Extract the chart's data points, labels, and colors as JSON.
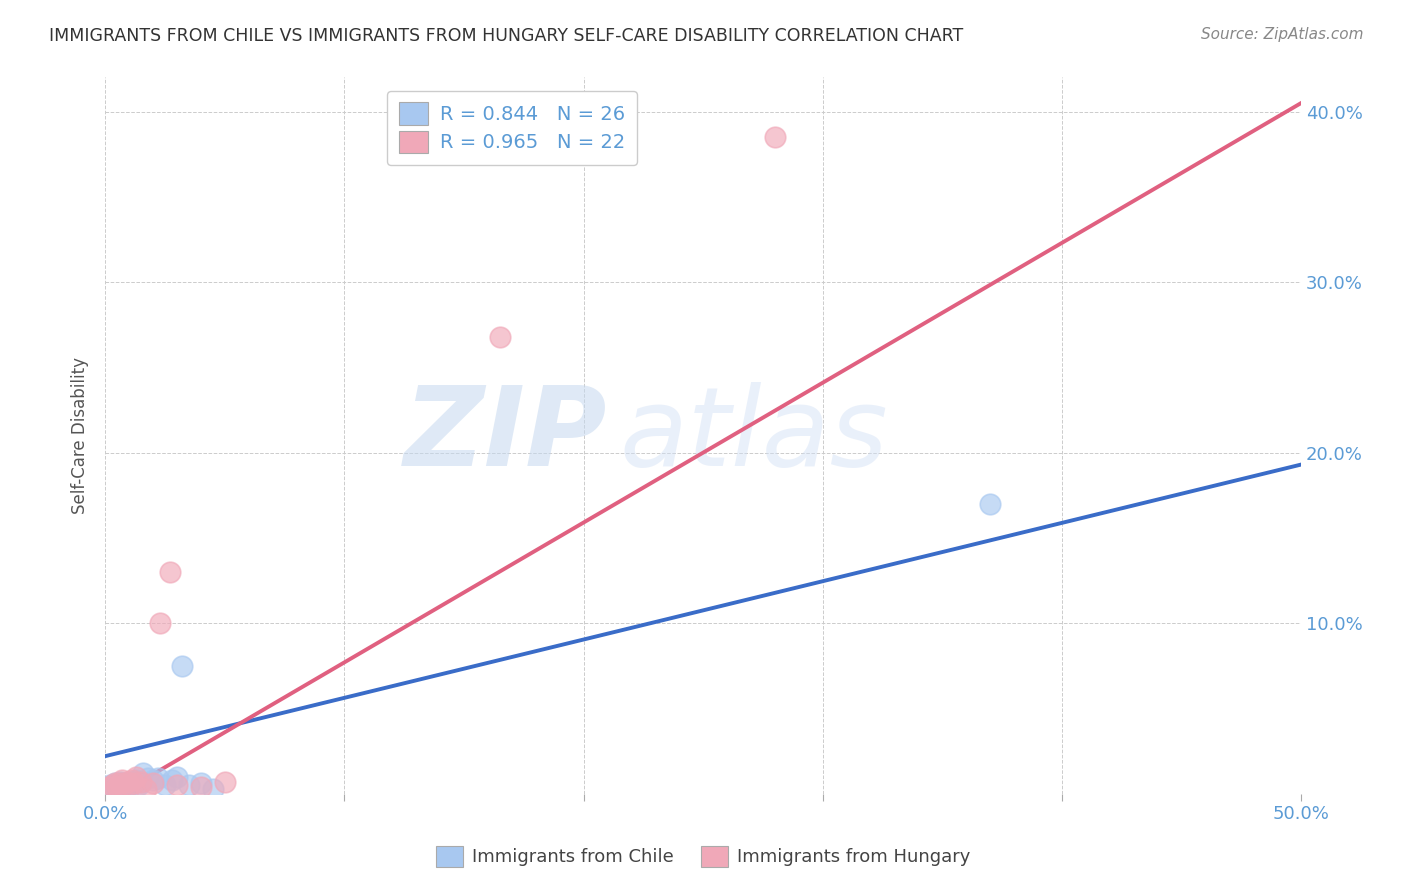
{
  "title": "IMMIGRANTS FROM CHILE VS IMMIGRANTS FROM HUNGARY SELF-CARE DISABILITY CORRELATION CHART",
  "source": "Source: ZipAtlas.com",
  "ylabel": "Self-Care Disability",
  "xlim": [
    0.0,
    0.5
  ],
  "ylim": [
    0.0,
    0.42
  ],
  "watermark_zip": "ZIP",
  "watermark_atlas": "atlas",
  "chile_color": "#a8c8f0",
  "hungary_color": "#f0a8b8",
  "chile_line_color": "#3a6cc8",
  "hungary_line_color": "#e06080",
  "chile_R": 0.844,
  "chile_N": 26,
  "hungary_R": 0.965,
  "hungary_N": 22,
  "chile_line_x0": 0.0,
  "chile_line_y0": 0.022,
  "chile_line_x1": 0.5,
  "chile_line_y1": 0.193,
  "hungary_line_x0": 0.0,
  "hungary_line_y0": -0.005,
  "hungary_line_x1": 0.5,
  "hungary_line_y1": 0.405,
  "chile_scatter_x": [
    0.002,
    0.003,
    0.004,
    0.005,
    0.006,
    0.007,
    0.008,
    0.009,
    0.01,
    0.011,
    0.012,
    0.013,
    0.014,
    0.015,
    0.016,
    0.018,
    0.02,
    0.022,
    0.025,
    0.028,
    0.03,
    0.032,
    0.035,
    0.04,
    0.045,
    0.37
  ],
  "chile_scatter_y": [
    0.005,
    0.003,
    0.006,
    0.004,
    0.007,
    0.005,
    0.006,
    0.004,
    0.005,
    0.007,
    0.006,
    0.008,
    0.005,
    0.007,
    0.012,
    0.009,
    0.008,
    0.009,
    0.005,
    0.008,
    0.01,
    0.075,
    0.005,
    0.006,
    0.003,
    0.17
  ],
  "hungary_scatter_x": [
    0.002,
    0.003,
    0.004,
    0.005,
    0.006,
    0.007,
    0.008,
    0.009,
    0.01,
    0.011,
    0.012,
    0.013,
    0.015,
    0.017,
    0.02,
    0.023,
    0.027,
    0.03,
    0.04,
    0.05,
    0.165,
    0.28
  ],
  "hungary_scatter_y": [
    0.004,
    0.005,
    0.006,
    0.004,
    0.006,
    0.008,
    0.005,
    0.007,
    0.005,
    0.008,
    0.006,
    0.01,
    0.007,
    0.003,
    0.006,
    0.1,
    0.13,
    0.005,
    0.004,
    0.007,
    0.268,
    0.385
  ],
  "background_color": "#ffffff",
  "grid_color": "#cccccc",
  "title_color": "#333333",
  "axis_tick_color": "#5b9bd5",
  "right_ytick_color": "#5b9bd5",
  "legend_text_color": "#5b9bd5"
}
